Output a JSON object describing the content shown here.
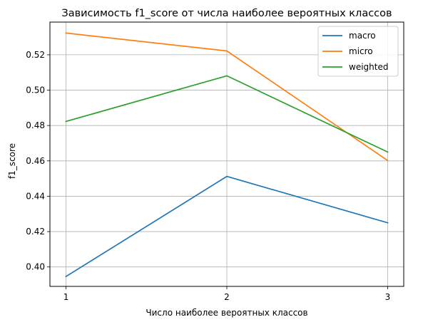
{
  "chart_data": {
    "type": "line",
    "title": "Зависимость f1_score от числа наиболее вероятных классов",
    "xlabel": "Число наиболее вероятных классов",
    "ylabel": "f1_score",
    "x": [
      1,
      2,
      3
    ],
    "x_ticks": [
      1,
      2,
      3
    ],
    "y_ticks": [
      0.4,
      0.42,
      0.44,
      0.46,
      0.48,
      0.5,
      0.52
    ],
    "xlim": [
      0.9,
      3.1
    ],
    "ylim": [
      0.389,
      0.5385
    ],
    "grid": true,
    "legend_position": "top-right",
    "series": [
      {
        "name": "macro",
        "color": "#1f77b4",
        "values": [
          0.3946,
          0.4512,
          0.425
        ]
      },
      {
        "name": "micro",
        "color": "#ff7f0e",
        "values": [
          0.5323,
          0.5222,
          0.4602
        ]
      },
      {
        "name": "weighted",
        "color": "#2ca02c",
        "values": [
          0.4823,
          0.5081,
          0.465
        ]
      }
    ]
  }
}
